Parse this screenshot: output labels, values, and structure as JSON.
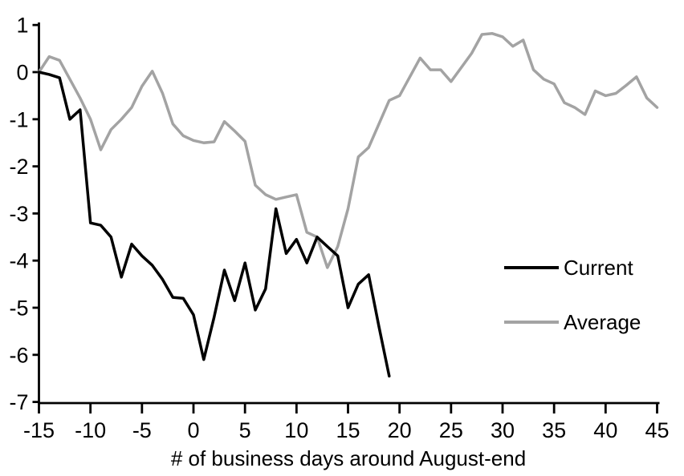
{
  "chart_data": {
    "type": "line",
    "title": "",
    "xlabel": "# of business days around August-end",
    "ylabel": "",
    "xlim": [
      -15,
      45
    ],
    "ylim": [
      -7,
      1
    ],
    "x_ticks": [
      -15,
      -10,
      -5,
      0,
      5,
      10,
      15,
      20,
      25,
      30,
      35,
      40,
      45
    ],
    "y_ticks": [
      1,
      0,
      -1,
      -2,
      -3,
      -4,
      -5,
      -6,
      -7
    ],
    "grid": false,
    "legend_position": "right-middle",
    "axis_color": "#000000",
    "background_color": "#ffffff",
    "series": [
      {
        "name": "Current",
        "color": "#000000",
        "x": [
          -15,
          -14,
          -13,
          -12,
          -11,
          -10,
          -9,
          -8,
          -7,
          -6,
          -5,
          -4,
          -3,
          -2,
          -1,
          0,
          1,
          2,
          3,
          4,
          5,
          6,
          7,
          8,
          9,
          10,
          11,
          12,
          13,
          14,
          15,
          16,
          17,
          18,
          19
        ],
        "values": [
          0,
          -0.05,
          -0.12,
          -1.0,
          -0.8,
          -3.2,
          -3.25,
          -3.5,
          -4.35,
          -3.65,
          -3.9,
          -4.1,
          -4.4,
          -4.78,
          -4.8,
          -5.15,
          -6.1,
          -5.2,
          -4.2,
          -4.85,
          -4.05,
          -5.05,
          -4.6,
          -2.9,
          -3.85,
          -3.55,
          -4.05,
          -3.5,
          -3.7,
          -3.9,
          -5.0,
          -4.5,
          -4.3,
          -5.4,
          -6.45
        ]
      },
      {
        "name": "Average",
        "color": "#a3a3a3",
        "x": [
          -15,
          -14,
          -13,
          -12,
          -11,
          -10,
          -9,
          -8,
          -7,
          -6,
          -5,
          -4,
          -3,
          -2,
          -1,
          0,
          1,
          2,
          3,
          4,
          5,
          6,
          7,
          8,
          9,
          10,
          11,
          12,
          13,
          14,
          15,
          16,
          17,
          18,
          19,
          20,
          21,
          22,
          23,
          24,
          25,
          26,
          27,
          28,
          29,
          30,
          31,
          32,
          33,
          34,
          35,
          36,
          37,
          38,
          39,
          40,
          41,
          42,
          43,
          44,
          45
        ],
        "values": [
          0,
          0.33,
          0.25,
          -0.15,
          -0.55,
          -1.0,
          -1.65,
          -1.22,
          -1.0,
          -0.75,
          -0.3,
          0.02,
          -0.45,
          -1.1,
          -1.35,
          -1.45,
          -1.5,
          -1.48,
          -1.05,
          -1.25,
          -1.47,
          -2.4,
          -2.6,
          -2.7,
          -2.65,
          -2.6,
          -3.4,
          -3.5,
          -4.15,
          -3.7,
          -2.9,
          -1.8,
          -1.6,
          -1.1,
          -0.6,
          -0.5,
          -0.1,
          0.3,
          0.05,
          0.05,
          -0.2,
          0.1,
          0.4,
          0.8,
          0.82,
          0.75,
          0.55,
          0.68,
          0.05,
          -0.15,
          -0.25,
          -0.65,
          -0.75,
          -0.9,
          -0.4,
          -0.5,
          -0.45,
          -0.28,
          -0.1,
          -0.55,
          -0.75
        ]
      }
    ]
  }
}
